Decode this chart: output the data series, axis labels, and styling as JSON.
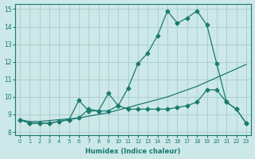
{
  "xlabel": "Humidex (Indice chaleur)",
  "xlim": [
    -0.5,
    23.5
  ],
  "ylim": [
    7.8,
    15.3
  ],
  "background_color": "#cce8e8",
  "grid_color": "#aacccc",
  "line_color": "#1a7a6e",
  "xticks": [
    0,
    1,
    2,
    3,
    4,
    5,
    6,
    7,
    8,
    9,
    10,
    11,
    12,
    13,
    14,
    15,
    16,
    17,
    18,
    19,
    20,
    21,
    22,
    23
  ],
  "yticks": [
    8,
    9,
    10,
    11,
    12,
    13,
    14,
    15
  ],
  "line1_x": [
    0,
    1,
    2,
    3,
    4,
    5,
    6,
    7,
    8,
    9,
    10,
    11,
    12,
    13,
    14,
    15,
    16,
    17,
    18,
    19,
    20,
    21,
    22,
    23
  ],
  "line1_y": [
    8.7,
    8.5,
    8.5,
    8.5,
    8.6,
    8.7,
    8.8,
    9.3,
    9.2,
    9.2,
    9.5,
    10.5,
    11.9,
    12.5,
    13.5,
    14.9,
    14.2,
    14.5,
    14.9,
    14.1,
    11.9,
    9.7,
    9.3,
    8.5
  ],
  "line2_x": [
    0,
    1,
    2,
    3,
    4,
    5,
    6,
    7,
    8,
    9,
    10,
    11,
    12,
    13,
    14,
    15,
    16,
    17,
    18,
    19,
    20,
    21,
    22,
    23
  ],
  "line2_y": [
    8.7,
    8.5,
    8.5,
    8.5,
    8.6,
    8.7,
    9.8,
    9.2,
    9.2,
    10.2,
    9.5,
    9.3,
    9.3,
    9.3,
    9.3,
    9.3,
    9.4,
    9.5,
    9.7,
    10.4,
    10.4,
    9.7,
    9.3,
    8.5
  ],
  "line3_x": [
    0,
    1,
    2,
    3,
    4,
    5,
    6,
    7,
    8,
    9,
    10,
    11,
    12,
    13,
    14,
    15,
    16,
    17,
    18,
    19,
    20,
    21,
    22,
    23
  ],
  "line3_y": [
    8.7,
    8.6,
    8.6,
    8.65,
    8.7,
    8.75,
    8.8,
    8.9,
    9.0,
    9.1,
    9.25,
    9.4,
    9.55,
    9.7,
    9.85,
    10.0,
    10.2,
    10.4,
    10.6,
    10.85,
    11.1,
    11.35,
    11.6,
    11.85
  ],
  "marker": "D",
  "marker_size": 2.5,
  "lw": 0.9
}
